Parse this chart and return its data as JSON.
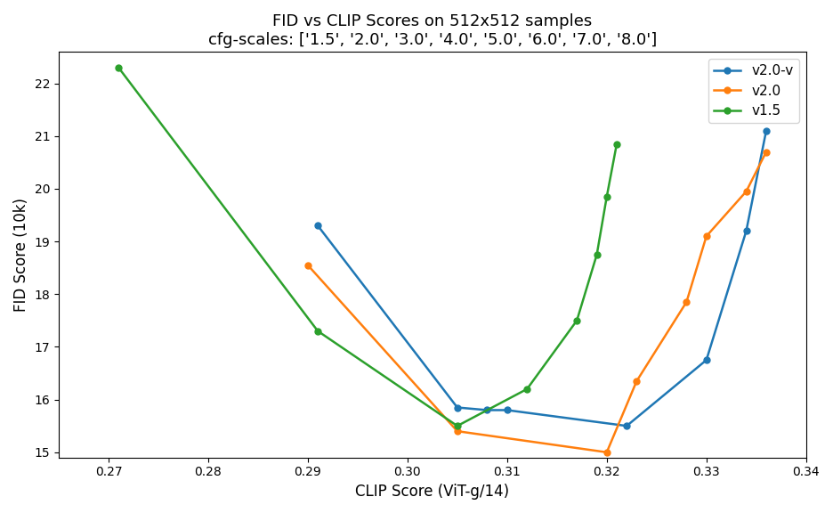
{
  "title_line1": "FID vs CLIP Scores on 512x512 samples",
  "title_line2": "cfg-scales: ['1.5', '2.0', '3.0', '4.0', '5.0', '6.0', '7.0', '8.0']",
  "xlabel": "CLIP Score (ViT-g/14)",
  "ylabel": "FID Score (10k)",
  "series": [
    {
      "label": "v2.0-v",
      "color": "#1f77b4",
      "clip": [
        0.291,
        0.305,
        0.308,
        0.31,
        0.322,
        0.33,
        0.334,
        0.336
      ],
      "fid": [
        19.3,
        15.85,
        15.8,
        15.8,
        15.5,
        16.75,
        19.2,
        21.1
      ]
    },
    {
      "label": "v2.0",
      "color": "#ff7f0e",
      "clip": [
        0.29,
        0.305,
        0.32,
        0.323,
        0.328,
        0.33,
        0.334,
        0.336
      ],
      "fid": [
        18.55,
        15.4,
        15.0,
        16.35,
        17.85,
        19.1,
        19.95,
        20.7
      ]
    },
    {
      "label": "v1.5",
      "color": "#2ca02c",
      "clip": [
        0.271,
        0.291,
        0.305,
        0.312,
        0.317,
        0.319,
        0.32,
        0.321
      ],
      "fid": [
        22.3,
        17.3,
        15.5,
        16.2,
        17.5,
        18.75,
        19.85,
        20.85
      ]
    }
  ],
  "xlim": [
    0.265,
    0.34
  ],
  "ylim": [
    14.9,
    22.6
  ],
  "legend_loc": "upper right",
  "title_fontsize": 13,
  "axes_label_fontsize": 12,
  "tick_fontsize": 10,
  "background_color": "#ffffff",
  "figsize": [
    9.36,
    5.76
  ],
  "dpi": 100
}
